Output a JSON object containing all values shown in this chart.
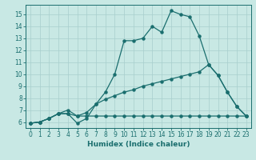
{
  "xlabel": "Humidex (Indice chaleur)",
  "xlim": [
    -0.5,
    23.5
  ],
  "ylim": [
    5.5,
    15.8
  ],
  "xticks": [
    0,
    1,
    2,
    3,
    4,
    5,
    6,
    7,
    8,
    9,
    10,
    11,
    12,
    13,
    14,
    15,
    16,
    17,
    18,
    19,
    20,
    21,
    22,
    23
  ],
  "yticks": [
    6,
    7,
    8,
    9,
    10,
    11,
    12,
    13,
    14,
    15
  ],
  "bg_color": "#c8e8e4",
  "line_color": "#1a6e6e",
  "grid_color": "#a8cecc",
  "line1_x": [
    0,
    1,
    2,
    3,
    4,
    5,
    6,
    7,
    8,
    9,
    10,
    11,
    12,
    13,
    14,
    15,
    16,
    17,
    18,
    19,
    20,
    21,
    22,
    23
  ],
  "line1_y": [
    5.9,
    6.0,
    6.3,
    6.7,
    6.7,
    5.9,
    6.3,
    7.5,
    8.5,
    10.0,
    12.8,
    12.8,
    13.0,
    14.0,
    13.5,
    15.3,
    15.0,
    14.8,
    13.2,
    10.8,
    9.9,
    8.5,
    7.3,
    6.5
  ],
  "line2_x": [
    0,
    1,
    2,
    3,
    4,
    5,
    6,
    7,
    8,
    9,
    10,
    11,
    12,
    13,
    14,
    15,
    16,
    17,
    18,
    19,
    20,
    21,
    22,
    23
  ],
  "line2_y": [
    5.9,
    6.0,
    6.3,
    6.7,
    6.7,
    6.5,
    6.8,
    7.5,
    7.9,
    8.2,
    8.5,
    8.7,
    9.0,
    9.2,
    9.4,
    9.6,
    9.8,
    10.0,
    10.2,
    10.8,
    9.9,
    8.5,
    7.3,
    6.5
  ],
  "line3_x": [
    0,
    1,
    2,
    3,
    4,
    5,
    6,
    7,
    8,
    9,
    10,
    11,
    12,
    13,
    14,
    15,
    16,
    17,
    18,
    19,
    20,
    21,
    22,
    23
  ],
  "line3_y": [
    5.9,
    6.0,
    6.3,
    6.7,
    7.0,
    6.5,
    6.5,
    6.5,
    6.5,
    6.5,
    6.5,
    6.5,
    6.5,
    6.5,
    6.5,
    6.5,
    6.5,
    6.5,
    6.5,
    6.5,
    6.5,
    6.5,
    6.5,
    6.5
  ],
  "marker_size": 2.2,
  "lw": 0.9
}
